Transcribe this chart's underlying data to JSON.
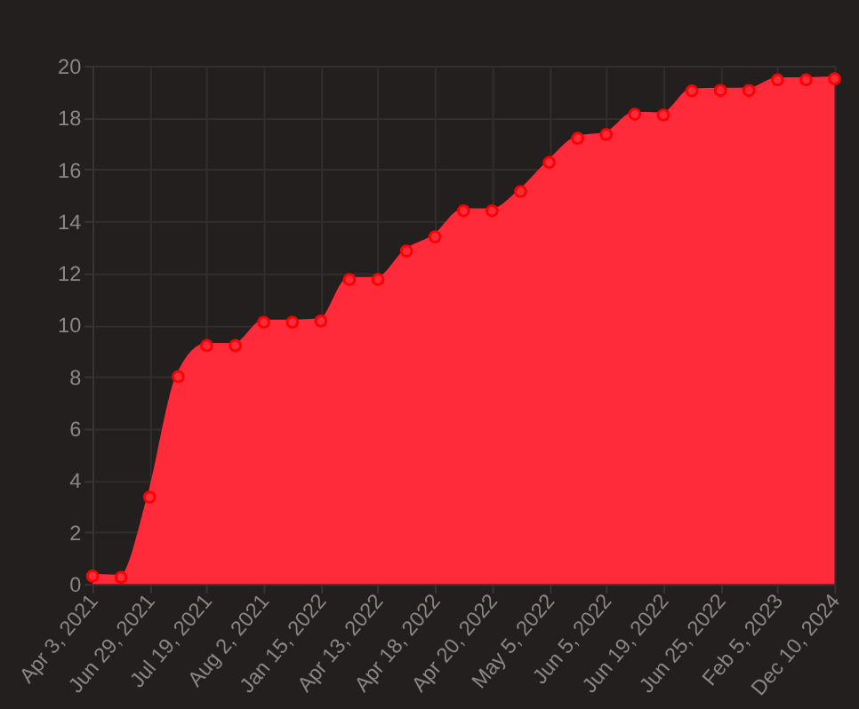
{
  "chart_data": {
    "type": "area",
    "categories": [
      "Apr 3, 2021",
      null,
      "Jun 29, 2021",
      null,
      "Jul 19, 2021",
      null,
      "Aug 2, 2021",
      null,
      "Jan 15, 2022",
      null,
      "Apr 13, 2022",
      null,
      "Apr 18, 2022",
      null,
      "Apr 20, 2022",
      null,
      "May 5, 2022",
      null,
      "Jun 5, 2022",
      null,
      "Jun 19, 2022",
      null,
      "Jun 25, 2022",
      null,
      "Feb 5, 2023",
      null,
      "Dec 10, 2024"
    ],
    "series": [
      {
        "color": "#ff2b3b",
        "values": [
          0.3,
          0.25,
          3.35,
          8.0,
          9.2,
          9.2,
          10.1,
          10.1,
          10.15,
          11.75,
          11.75,
          12.85,
          13.4,
          14.4,
          14.4,
          15.15,
          16.27,
          17.2,
          17.35,
          18.13,
          18.1,
          19.03,
          19.05,
          19.05,
          19.46,
          19.46,
          19.5
        ]
      }
    ],
    "ylim": [
      0,
      20
    ],
    "yticks": [
      0,
      2,
      4,
      6,
      8,
      10,
      12,
      14,
      16,
      18,
      20
    ],
    "grid": true,
    "marker": "circle",
    "line_style": "solid"
  }
}
